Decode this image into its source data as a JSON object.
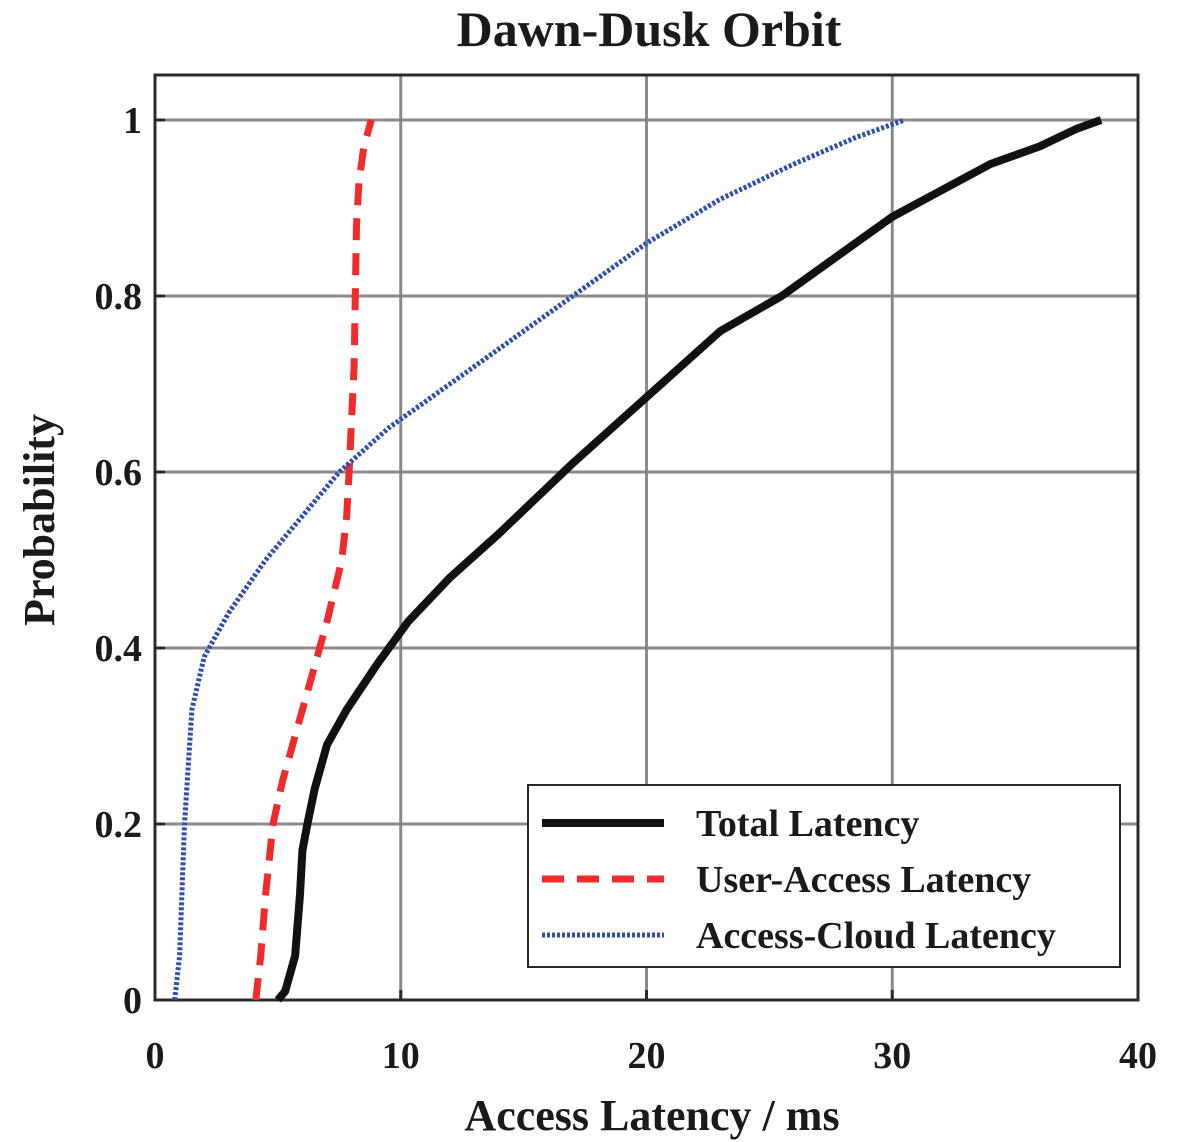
{
  "chart_data": {
    "type": "line",
    "title": "Dawn-Dusk Orbit",
    "xlabel": "Access Latency / ms",
    "ylabel": "Probability",
    "xlim": [
      0,
      40
    ],
    "ylim": [
      0,
      1.05
    ],
    "x_ticks": [
      "0",
      "10",
      "20",
      "30",
      "40"
    ],
    "y_ticks": [
      "0",
      "0.2",
      "0.4",
      "0.6",
      "0.8",
      "1"
    ],
    "grid": true,
    "legend_position": "bottom-right",
    "series": [
      {
        "name": "Total Latency",
        "color": "#111111",
        "style": "solid",
        "points": [
          [
            5.0,
            0
          ],
          [
            5.3,
            0.01
          ],
          [
            5.7,
            0.05
          ],
          [
            5.9,
            0.12
          ],
          [
            6.0,
            0.17
          ],
          [
            6.2,
            0.2
          ],
          [
            6.5,
            0.24
          ],
          [
            7.0,
            0.29
          ],
          [
            7.8,
            0.33
          ],
          [
            9.0,
            0.38
          ],
          [
            10.3,
            0.43
          ],
          [
            12.0,
            0.48
          ],
          [
            14.0,
            0.53
          ],
          [
            15.5,
            0.57
          ],
          [
            17.0,
            0.61
          ],
          [
            19.0,
            0.66
          ],
          [
            21.0,
            0.71
          ],
          [
            23.0,
            0.76
          ],
          [
            25.5,
            0.8
          ],
          [
            28.0,
            0.85
          ],
          [
            30.0,
            0.89
          ],
          [
            32.0,
            0.92
          ],
          [
            34.0,
            0.95
          ],
          [
            36.0,
            0.97
          ],
          [
            37.5,
            0.99
          ],
          [
            38.5,
            1.0
          ]
        ]
      },
      {
        "name": "User-Access Latency",
        "color": "#ef2b2b",
        "style": "dashed",
        "points": [
          [
            4.1,
            0
          ],
          [
            4.3,
            0.05
          ],
          [
            4.5,
            0.12
          ],
          [
            4.8,
            0.2
          ],
          [
            5.2,
            0.25
          ],
          [
            5.7,
            0.3
          ],
          [
            6.4,
            0.37
          ],
          [
            7.0,
            0.43
          ],
          [
            7.6,
            0.5
          ],
          [
            7.8,
            0.55
          ],
          [
            7.9,
            0.6
          ],
          [
            8.0,
            0.66
          ],
          [
            8.1,
            0.72
          ],
          [
            8.15,
            0.8
          ],
          [
            8.2,
            0.88
          ],
          [
            8.3,
            0.93
          ],
          [
            8.5,
            0.97
          ],
          [
            8.8,
            1.0
          ]
        ]
      },
      {
        "name": "Access-Cloud Latency",
        "color": "#2f4fb0",
        "style": "dotted",
        "points": [
          [
            0.8,
            0
          ],
          [
            1.0,
            0.05
          ],
          [
            1.2,
            0.2
          ],
          [
            1.5,
            0.33
          ],
          [
            2.0,
            0.39
          ],
          [
            3.0,
            0.44
          ],
          [
            4.5,
            0.5
          ],
          [
            6.0,
            0.55
          ],
          [
            7.5,
            0.6
          ],
          [
            9.5,
            0.65
          ],
          [
            12.0,
            0.7
          ],
          [
            14.5,
            0.75
          ],
          [
            17.0,
            0.8
          ],
          [
            20.0,
            0.86
          ],
          [
            23.0,
            0.91
          ],
          [
            26.0,
            0.95
          ],
          [
            28.5,
            0.98
          ],
          [
            30.5,
            1.0
          ]
        ]
      }
    ]
  }
}
